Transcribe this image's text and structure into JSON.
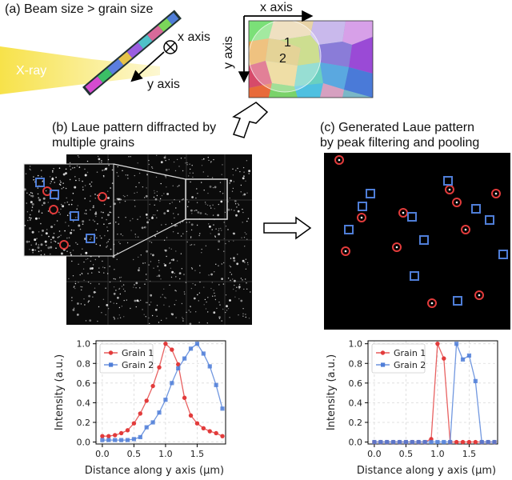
{
  "captions": {
    "a": "(a) Beam size > grain size",
    "b_line1": "(b) Laue pattern diffracted by",
    "b_line2": "multiple grains",
    "c_line1": "(c) Generated Laue pattern",
    "c_line2": "by peak filtering and pooling"
  },
  "beam": {
    "xray_label": "X-ray",
    "x_axis_label": "x axis",
    "y_axis_label": "y axis",
    "beam_color": "#f7e24a"
  },
  "grain_map": {
    "x_axis_label": "x axis",
    "y_axis_label": "y axis",
    "grain1_label": "1",
    "grain2_label": "2"
  },
  "markers": {
    "grain1_color": "#e23b3b",
    "grain2_color": "#4f7ed8"
  },
  "chart_data": [
    {
      "type": "line",
      "xlabel": "Distance along y axis (µm)",
      "ylabel": "Intensity (a.u.)",
      "xlim": [
        -0.1,
        1.95
      ],
      "ylim": [
        -0.02,
        1.03
      ],
      "xticks": [
        "0.0",
        "0.5",
        "1.0",
        "1.5"
      ],
      "yticks": [
        "0.0",
        "0.2",
        "0.4",
        "0.6",
        "0.8",
        "1.0"
      ],
      "grid": true,
      "legend": "top-left",
      "series": [
        {
          "name": "Grain 1",
          "color": "#e23b3b",
          "marker": "circle",
          "x": [
            0,
            0.1,
            0.2,
            0.3,
            0.4,
            0.5,
            0.6,
            0.7,
            0.8,
            0.9,
            1.0,
            1.1,
            1.2,
            1.3,
            1.4,
            1.5,
            1.6,
            1.7,
            1.8,
            1.9
          ],
          "y": [
            0.06,
            0.06,
            0.07,
            0.09,
            0.12,
            0.19,
            0.29,
            0.42,
            0.57,
            0.76,
            1.0,
            0.94,
            0.79,
            0.45,
            0.27,
            0.19,
            0.14,
            0.11,
            0.09,
            0.06
          ]
        },
        {
          "name": "Grain 2",
          "color": "#4f7ed8",
          "marker": "square",
          "x": [
            0,
            0.1,
            0.2,
            0.3,
            0.4,
            0.5,
            0.6,
            0.7,
            0.8,
            0.9,
            1.0,
            1.1,
            1.2,
            1.3,
            1.4,
            1.5,
            1.6,
            1.7,
            1.8,
            1.9
          ],
          "y": [
            0.02,
            0.02,
            0.02,
            0.02,
            0.02,
            0.03,
            0.05,
            0.15,
            0.2,
            0.3,
            0.43,
            0.6,
            0.75,
            0.85,
            0.95,
            1.0,
            0.9,
            0.77,
            0.58,
            0.34
          ]
        }
      ]
    },
    {
      "type": "line",
      "xlabel": "Distance along y axis (µm)",
      "ylabel": "Intensity (a.u.)",
      "xlim": [
        -0.1,
        1.95
      ],
      "ylim": [
        -0.02,
        1.03
      ],
      "xticks": [
        "0.0",
        "0.5",
        "1.0",
        "1.5"
      ],
      "yticks": [
        "0.0",
        "0.2",
        "0.4",
        "0.6",
        "0.8",
        "1.0"
      ],
      "grid": true,
      "legend": "top-left",
      "series": [
        {
          "name": "Grain 1",
          "color": "#e23b3b",
          "marker": "circle",
          "x": [
            0,
            0.1,
            0.2,
            0.3,
            0.4,
            0.5,
            0.6,
            0.7,
            0.8,
            0.9,
            1.0,
            1.1,
            1.2,
            1.3,
            1.4,
            1.5,
            1.6,
            1.7,
            1.8,
            1.9
          ],
          "y": [
            0,
            0,
            0,
            0,
            0,
            0,
            0,
            0,
            0,
            0.03,
            1.0,
            0.85,
            0,
            0,
            0,
            0,
            0,
            0,
            0,
            0
          ]
        },
        {
          "name": "Grain 2",
          "color": "#4f7ed8",
          "marker": "square",
          "x": [
            0,
            0.1,
            0.2,
            0.3,
            0.4,
            0.5,
            0.6,
            0.7,
            0.8,
            0.9,
            1.0,
            1.1,
            1.2,
            1.3,
            1.4,
            1.5,
            1.6,
            1.7,
            1.8,
            1.9
          ],
          "y": [
            0,
            0,
            0,
            0,
            0,
            0,
            0,
            0,
            0,
            0,
            0,
            0,
            0,
            1.0,
            0.84,
            0.88,
            0.62,
            0,
            0,
            0
          ]
        }
      ]
    }
  ]
}
